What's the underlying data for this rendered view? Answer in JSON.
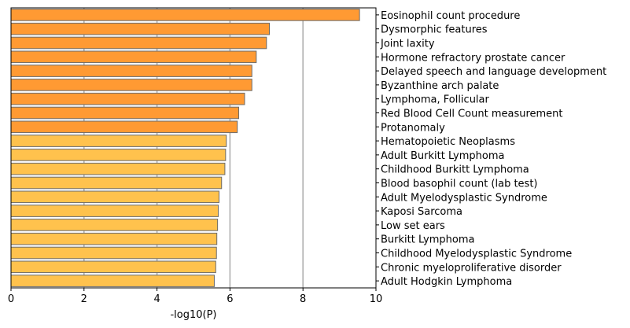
{
  "chart_data": {
    "type": "bar",
    "orientation": "horizontal",
    "title": "",
    "xlabel": "-log10(P)",
    "ylabel": "",
    "xlim": [
      0,
      10
    ],
    "xticks": [
      0,
      2,
      4,
      6,
      8,
      10
    ],
    "grid": "x-major",
    "label_position": "right",
    "colors": {
      "high": "#ff9a33",
      "low": "#ffc24d",
      "edge": "#6b6b6b",
      "grid": "#b0b0b0"
    },
    "categories": [
      "Eosinophil count procedure",
      "Dysmorphic features",
      "Joint laxity",
      "Hormone refractory prostate cancer",
      "Delayed speech and language development",
      "Byzanthine arch palate",
      "Lymphoma, Follicular",
      "Red Blood Cell Count measurement",
      "Protanomaly",
      "Hematopoietic Neoplasms",
      "Adult Burkitt Lymphoma",
      "Childhood Burkitt Lymphoma",
      "Blood basophil count (lab test)",
      "Adult Myelodysplastic Syndrome",
      "Kaposi Sarcoma",
      "Low set ears",
      "Burkitt Lymphoma",
      "Childhood Myelodysplastic Syndrome",
      "Chronic myeloproliferative disorder",
      "Adult Hodgkin Lymphoma"
    ],
    "values": [
      9.55,
      7.08,
      7.0,
      6.72,
      6.6,
      6.6,
      6.4,
      6.24,
      6.2,
      5.9,
      5.88,
      5.86,
      5.77,
      5.7,
      5.68,
      5.66,
      5.64,
      5.63,
      5.61,
      5.57
    ],
    "color_group": [
      "high",
      "high",
      "high",
      "high",
      "high",
      "high",
      "high",
      "high",
      "high",
      "low",
      "low",
      "low",
      "low",
      "low",
      "low",
      "low",
      "low",
      "low",
      "low",
      "low"
    ]
  }
}
